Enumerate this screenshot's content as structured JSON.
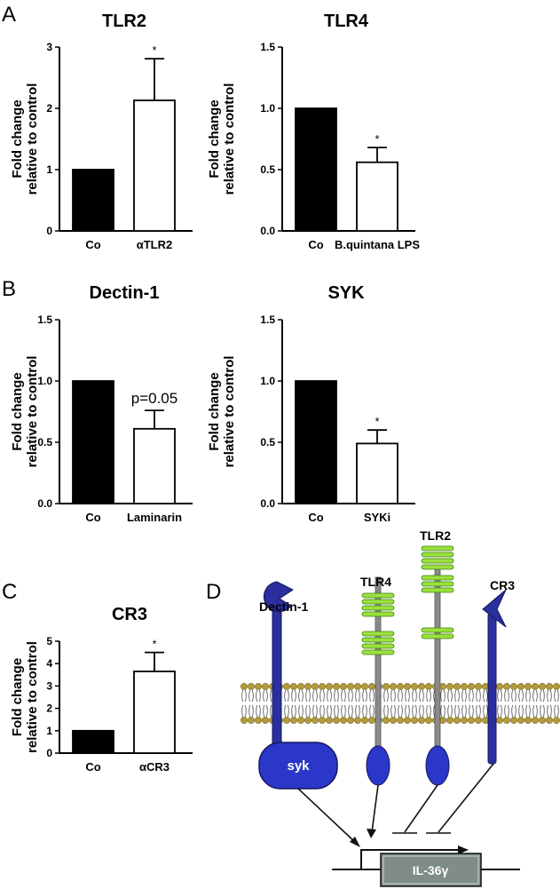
{
  "panels": {
    "A": "A",
    "B": "B",
    "C": "C",
    "D": "D"
  },
  "chart_data": [
    {
      "type": "bar",
      "panel": "A",
      "title": "TLR2",
      "ylabel": [
        "Fold change",
        "relative to control"
      ],
      "categories": [
        "Co",
        "αTLR2"
      ],
      "values": [
        1.0,
        2.13
      ],
      "errors": [
        0,
        0.68
      ],
      "fills": [
        "#000000",
        "#ffffff"
      ],
      "annotations": [
        "",
        "*"
      ],
      "ylim": [
        0,
        3
      ],
      "yticks": [
        "0",
        "1",
        "2",
        "3"
      ],
      "ytick_values": [
        0,
        1,
        2,
        3
      ]
    },
    {
      "type": "bar",
      "panel": "A",
      "title": "TLR4",
      "ylabel": [
        "Fold change",
        "relative to control"
      ],
      "categories": [
        "Co",
        "B.quintana LPS"
      ],
      "values": [
        1.0,
        0.56
      ],
      "errors": [
        0,
        0.12
      ],
      "fills": [
        "#000000",
        "#ffffff"
      ],
      "annotations": [
        "",
        "*"
      ],
      "ylim": [
        0,
        1.5
      ],
      "yticks": [
        "0.0",
        "0.5",
        "1.0",
        "1.5"
      ],
      "ytick_values": [
        0,
        0.5,
        1.0,
        1.5
      ]
    },
    {
      "type": "bar",
      "panel": "B",
      "title": "Dectin-1",
      "ylabel": [
        "Fold change",
        "relative to control"
      ],
      "categories": [
        "Co",
        "Laminarin"
      ],
      "values": [
        1.0,
        0.61
      ],
      "errors": [
        0,
        0.15
      ],
      "fills": [
        "#000000",
        "#ffffff"
      ],
      "annotations": [
        "",
        "p=0.05"
      ],
      "ylim": [
        0,
        1.5
      ],
      "yticks": [
        "0.0",
        "0.5",
        "1.0",
        "1.5"
      ],
      "ytick_values": [
        0,
        0.5,
        1.0,
        1.5
      ]
    },
    {
      "type": "bar",
      "panel": "B",
      "title": "SYK",
      "ylabel": [
        "Fold change",
        "relative to control"
      ],
      "categories": [
        "Co",
        "SYKi"
      ],
      "values": [
        1.0,
        0.49
      ],
      "errors": [
        0,
        0.11
      ],
      "fills": [
        "#000000",
        "#ffffff"
      ],
      "annotations": [
        "",
        "*"
      ],
      "ylim": [
        0,
        1.5
      ],
      "yticks": [
        "0.0",
        "0.5",
        "1.0",
        "1.5"
      ],
      "ytick_values": [
        0,
        0.5,
        1.0,
        1.5
      ]
    },
    {
      "type": "bar",
      "panel": "C",
      "title": "CR3",
      "ylabel": [
        "Fold change",
        "relative to control"
      ],
      "categories": [
        "Co",
        "αCR3"
      ],
      "values": [
        1.0,
        3.65
      ],
      "errors": [
        0,
        0.85
      ],
      "fills": [
        "#000000",
        "#ffffff"
      ],
      "annotations": [
        "",
        "*"
      ],
      "ylim": [
        0,
        5
      ],
      "yticks": [
        "0",
        "1",
        "2",
        "3",
        "4",
        "5"
      ],
      "ytick_values": [
        0,
        1,
        2,
        3,
        4,
        5
      ]
    }
  ],
  "diagram": {
    "receptors": {
      "dectin1": "Dectin-1",
      "tlr4": "TLR4",
      "tlr2": "TLR2",
      "cr3": "CR3"
    },
    "kinase": "syk",
    "gene": "IL-36γ",
    "colors": {
      "receptor_blue": "#2b2f9e",
      "tlr_green": "#9be03c",
      "membrane_head": "#b39b3a",
      "gene_box": "#7f8c87",
      "stem_gray": "#8a8a8a"
    }
  }
}
